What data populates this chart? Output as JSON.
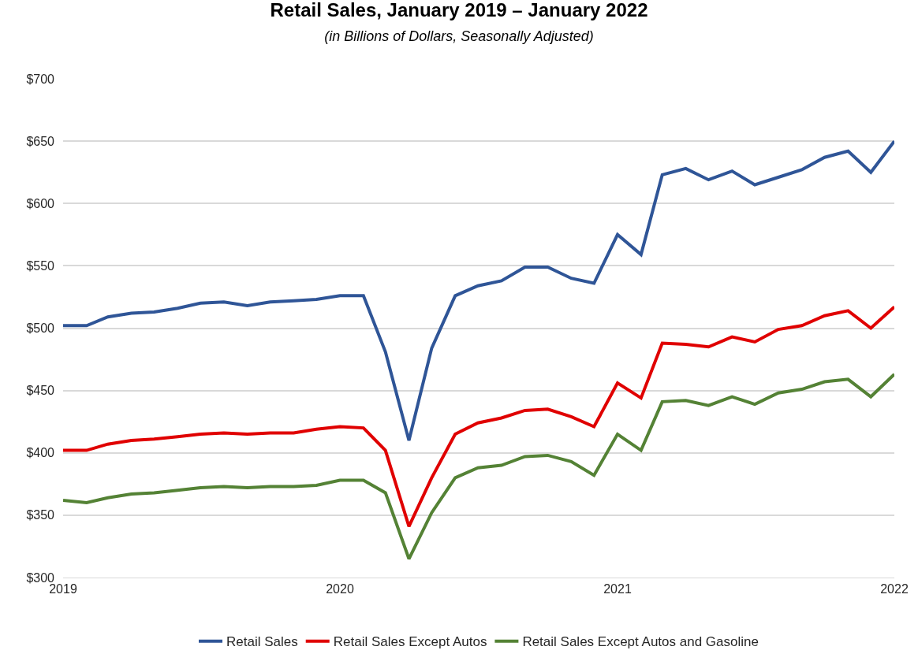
{
  "chart_data": {
    "type": "line",
    "title": "Retail Sales, January 2019 – January 2022",
    "subtitle": "(in Billions of Dollars, Seasonally Adjusted)",
    "x": [
      "2019-01",
      "2019-02",
      "2019-03",
      "2019-04",
      "2019-05",
      "2019-06",
      "2019-07",
      "2019-08",
      "2019-09",
      "2019-10",
      "2019-11",
      "2019-12",
      "2020-01",
      "2020-02",
      "2020-03",
      "2020-04",
      "2020-05",
      "2020-06",
      "2020-07",
      "2020-08",
      "2020-09",
      "2020-10",
      "2020-11",
      "2020-12",
      "2021-01",
      "2021-02",
      "2021-03",
      "2021-04",
      "2021-05",
      "2021-06",
      "2021-07",
      "2021-08",
      "2021-09",
      "2021-10",
      "2021-11",
      "2021-12",
      "2022-01"
    ],
    "series": [
      {
        "name": "Retail Sales",
        "color": "#2f5597",
        "values": [
          502,
          502,
          509,
          512,
          513,
          516,
          520,
          521,
          518,
          521,
          522,
          523,
          526,
          526,
          481,
          410,
          484,
          526,
          534,
          538,
          549,
          549,
          540,
          536,
          575,
          559,
          623,
          628,
          619,
          626,
          615,
          621,
          627,
          637,
          642,
          625,
          650
        ]
      },
      {
        "name": "Retail Sales Except Autos",
        "color": "#e00000",
        "values": [
          402,
          402,
          407,
          410,
          411,
          413,
          415,
          416,
          415,
          416,
          416,
          419,
          421,
          420,
          402,
          341,
          380,
          415,
          424,
          428,
          434,
          435,
          429,
          421,
          456,
          444,
          488,
          487,
          485,
          493,
          489,
          499,
          502,
          510,
          514,
          500,
          517
        ]
      },
      {
        "name": "Retail Sales Except Autos and Gasoline",
        "color": "#548235",
        "values": [
          362,
          360,
          364,
          367,
          368,
          370,
          372,
          373,
          372,
          373,
          373,
          374,
          378,
          378,
          368,
          315,
          352,
          380,
          388,
          390,
          397,
          398,
          393,
          382,
          415,
          402,
          441,
          442,
          438,
          445,
          439,
          448,
          451,
          457,
          459,
          445,
          463
        ]
      }
    ],
    "xlim": [
      "2019-01",
      "2022-01"
    ],
    "xticks": [
      "2019",
      "2020",
      "2021",
      "2022"
    ],
    "ylim": [
      300,
      700
    ],
    "yticks": [
      {
        "value": 300,
        "label": "$300"
      },
      {
        "value": 350,
        "label": "$350"
      },
      {
        "value": 400,
        "label": "$400"
      },
      {
        "value": 450,
        "label": "$450"
      },
      {
        "value": 500,
        "label": "$500"
      },
      {
        "value": 550,
        "label": "$550"
      },
      {
        "value": 600,
        "label": "$600"
      },
      {
        "value": 650,
        "label": "$650"
      },
      {
        "value": 700,
        "label": "$700"
      }
    ],
    "grid": "y",
    "legend": "bottom",
    "marker": "none",
    "line_style": "solid"
  }
}
